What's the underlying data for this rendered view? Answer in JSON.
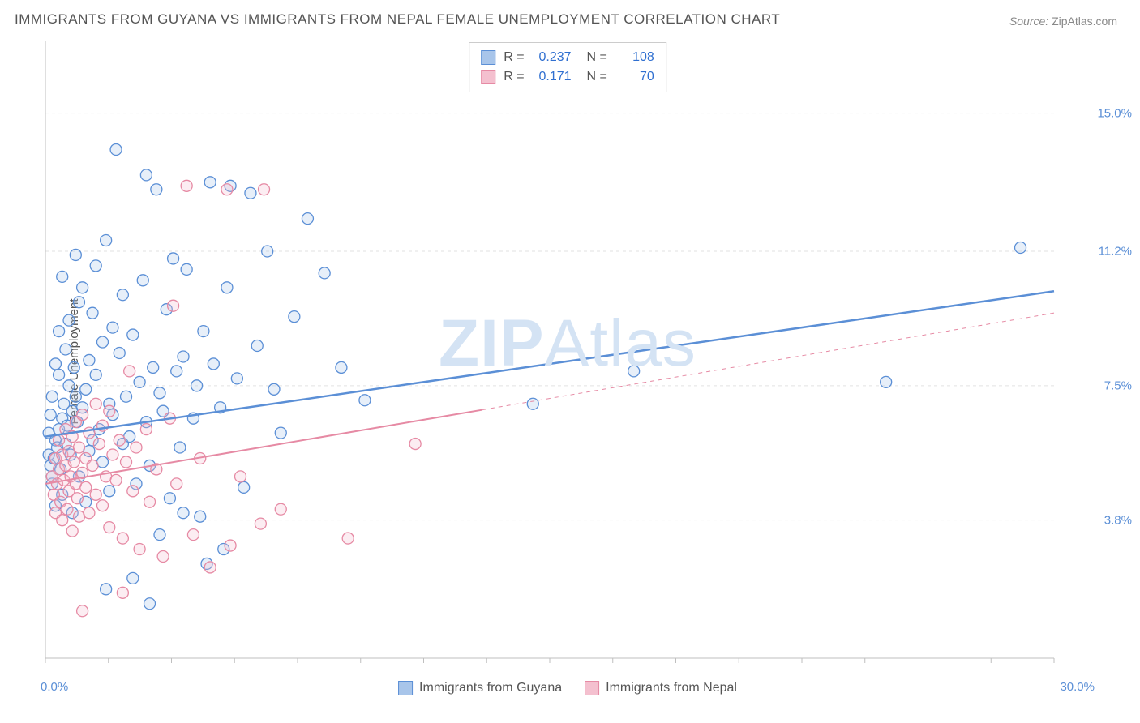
{
  "title": "IMMIGRANTS FROM GUYANA VS IMMIGRANTS FROM NEPAL FEMALE UNEMPLOYMENT CORRELATION CHART",
  "source_label": "Source:",
  "source_value": "ZipAtlas.com",
  "ylabel": "Female Unemployment",
  "watermark_bold": "ZIP",
  "watermark_rest": "Atlas",
  "chart": {
    "type": "scatter",
    "xlim": [
      0,
      30
    ],
    "ylim": [
      0,
      17
    ],
    "x_tick_min": "0.0%",
    "x_tick_max": "30.0%",
    "y_gridlines": [
      3.8,
      7.5,
      11.2,
      15.0
    ],
    "y_gridline_labels": [
      "3.8%",
      "7.5%",
      "11.2%",
      "15.0%"
    ],
    "background_color": "#ffffff",
    "grid_color": "#e2e2e2",
    "axis_color": "#bfbfbf",
    "tick_color": "#bfbfbf",
    "label_color": "#5b8fd6",
    "marker_radius": 7,
    "marker_stroke_width": 1.3,
    "marker_fill_opacity": 0.28,
    "series": [
      {
        "name": "Immigrants from Guyana",
        "color_stroke": "#5b8fd6",
        "color_fill": "#a8c5ea",
        "R": "0.237",
        "N": "108",
        "trend": {
          "x1": 0,
          "y1": 6.1,
          "x2": 30,
          "y2": 10.1,
          "width": 2.5,
          "solid_to_x": 30
        },
        "points": [
          [
            0.1,
            5.6
          ],
          [
            0.1,
            6.2
          ],
          [
            0.15,
            5.3
          ],
          [
            0.15,
            6.7
          ],
          [
            0.2,
            4.8
          ],
          [
            0.2,
            5.0
          ],
          [
            0.2,
            7.2
          ],
          [
            0.25,
            5.5
          ],
          [
            0.3,
            6.0
          ],
          [
            0.3,
            4.2
          ],
          [
            0.3,
            8.1
          ],
          [
            0.35,
            5.8
          ],
          [
            0.4,
            6.3
          ],
          [
            0.4,
            7.8
          ],
          [
            0.4,
            9.0
          ],
          [
            0.45,
            5.2
          ],
          [
            0.5,
            6.6
          ],
          [
            0.5,
            4.5
          ],
          [
            0.5,
            10.5
          ],
          [
            0.55,
            7.0
          ],
          [
            0.6,
            5.9
          ],
          [
            0.6,
            8.5
          ],
          [
            0.65,
            6.4
          ],
          [
            0.7,
            9.3
          ],
          [
            0.7,
            7.5
          ],
          [
            0.75,
            5.6
          ],
          [
            0.8,
            6.8
          ],
          [
            0.8,
            4.0
          ],
          [
            0.85,
            8.0
          ],
          [
            0.9,
            7.2
          ],
          [
            0.9,
            11.1
          ],
          [
            0.95,
            6.5
          ],
          [
            1.0,
            5.0
          ],
          [
            1.0,
            9.8
          ],
          [
            1.1,
            10.2
          ],
          [
            1.1,
            6.9
          ],
          [
            1.2,
            7.4
          ],
          [
            1.2,
            4.3
          ],
          [
            1.3,
            8.2
          ],
          [
            1.3,
            5.7
          ],
          [
            1.4,
            6.0
          ],
          [
            1.4,
            9.5
          ],
          [
            1.5,
            10.8
          ],
          [
            1.5,
            7.8
          ],
          [
            1.6,
            6.3
          ],
          [
            1.7,
            8.7
          ],
          [
            1.7,
            5.4
          ],
          [
            1.8,
            11.5
          ],
          [
            1.9,
            7.0
          ],
          [
            1.9,
            4.6
          ],
          [
            2.0,
            9.1
          ],
          [
            2.0,
            6.7
          ],
          [
            2.1,
            14.0
          ],
          [
            2.2,
            8.4
          ],
          [
            2.3,
            5.9
          ],
          [
            2.3,
            10.0
          ],
          [
            2.4,
            7.2
          ],
          [
            2.5,
            6.1
          ],
          [
            2.6,
            8.9
          ],
          [
            2.7,
            4.8
          ],
          [
            2.8,
            7.6
          ],
          [
            2.9,
            10.4
          ],
          [
            3.0,
            13.3
          ],
          [
            3.0,
            6.5
          ],
          [
            3.1,
            5.3
          ],
          [
            3.2,
            8.0
          ],
          [
            3.3,
            12.9
          ],
          [
            3.4,
            7.3
          ],
          [
            3.5,
            6.8
          ],
          [
            3.6,
            9.6
          ],
          [
            3.7,
            4.4
          ],
          [
            3.8,
            11.0
          ],
          [
            3.9,
            7.9
          ],
          [
            4.0,
            5.8
          ],
          [
            4.1,
            8.3
          ],
          [
            4.2,
            10.7
          ],
          [
            4.4,
            6.6
          ],
          [
            4.5,
            7.5
          ],
          [
            4.6,
            3.9
          ],
          [
            4.7,
            9.0
          ],
          [
            4.9,
            13.1
          ],
          [
            5.0,
            8.1
          ],
          [
            5.2,
            6.9
          ],
          [
            5.4,
            10.2
          ],
          [
            5.5,
            13.0
          ],
          [
            5.7,
            7.7
          ],
          [
            5.9,
            4.7
          ],
          [
            6.1,
            12.8
          ],
          [
            6.3,
            8.6
          ],
          [
            6.6,
            11.2
          ],
          [
            6.8,
            7.4
          ],
          [
            7.0,
            6.2
          ],
          [
            7.4,
            9.4
          ],
          [
            7.8,
            12.1
          ],
          [
            8.3,
            10.6
          ],
          [
            8.8,
            8.0
          ],
          [
            9.5,
            7.1
          ],
          [
            14.5,
            7.0
          ],
          [
            17.5,
            7.9
          ],
          [
            25.0,
            7.6
          ],
          [
            29.0,
            11.3
          ],
          [
            1.8,
            1.9
          ],
          [
            2.6,
            2.2
          ],
          [
            3.1,
            1.5
          ],
          [
            4.8,
            2.6
          ],
          [
            5.3,
            3.0
          ],
          [
            3.4,
            3.4
          ],
          [
            4.1,
            4.0
          ]
        ]
      },
      {
        "name": "Immigrants from Nepal",
        "color_stroke": "#e68aa4",
        "color_fill": "#f4c0cf",
        "R": "0.171",
        "N": "70",
        "trend": {
          "x1": 0,
          "y1": 4.8,
          "x2": 30,
          "y2": 9.5,
          "width": 2,
          "solid_to_x": 13
        },
        "points": [
          [
            0.2,
            5.0
          ],
          [
            0.25,
            4.5
          ],
          [
            0.3,
            5.5
          ],
          [
            0.3,
            4.0
          ],
          [
            0.35,
            4.8
          ],
          [
            0.4,
            5.2
          ],
          [
            0.4,
            6.0
          ],
          [
            0.45,
            4.3
          ],
          [
            0.5,
            5.6
          ],
          [
            0.5,
            3.8
          ],
          [
            0.55,
            4.9
          ],
          [
            0.6,
            5.3
          ],
          [
            0.6,
            6.3
          ],
          [
            0.65,
            4.1
          ],
          [
            0.7,
            5.7
          ],
          [
            0.7,
            4.6
          ],
          [
            0.75,
            5.0
          ],
          [
            0.8,
            6.1
          ],
          [
            0.8,
            3.5
          ],
          [
            0.85,
            5.4
          ],
          [
            0.9,
            4.8
          ],
          [
            0.9,
            6.5
          ],
          [
            0.95,
            4.4
          ],
          [
            1.0,
            5.8
          ],
          [
            1.0,
            3.9
          ],
          [
            1.1,
            5.1
          ],
          [
            1.1,
            6.7
          ],
          [
            1.2,
            4.7
          ],
          [
            1.2,
            5.5
          ],
          [
            1.3,
            4.0
          ],
          [
            1.3,
            6.2
          ],
          [
            1.4,
            5.3
          ],
          [
            1.5,
            4.5
          ],
          [
            1.5,
            7.0
          ],
          [
            1.6,
            5.9
          ],
          [
            1.7,
            4.2
          ],
          [
            1.7,
            6.4
          ],
          [
            1.8,
            5.0
          ],
          [
            1.9,
            3.6
          ],
          [
            1.9,
            6.8
          ],
          [
            2.0,
            5.6
          ],
          [
            2.1,
            4.9
          ],
          [
            2.2,
            6.0
          ],
          [
            2.3,
            3.3
          ],
          [
            2.4,
            5.4
          ],
          [
            2.5,
            7.9
          ],
          [
            2.6,
            4.6
          ],
          [
            2.7,
            5.8
          ],
          [
            2.8,
            3.0
          ],
          [
            3.0,
            6.3
          ],
          [
            3.1,
            4.3
          ],
          [
            3.3,
            5.2
          ],
          [
            3.5,
            2.8
          ],
          [
            3.7,
            6.6
          ],
          [
            3.8,
            9.7
          ],
          [
            3.9,
            4.8
          ],
          [
            4.2,
            13.0
          ],
          [
            4.4,
            3.4
          ],
          [
            4.6,
            5.5
          ],
          [
            4.9,
            2.5
          ],
          [
            5.4,
            12.9
          ],
          [
            5.5,
            3.1
          ],
          [
            5.8,
            5.0
          ],
          [
            6.4,
            3.7
          ],
          [
            6.5,
            12.9
          ],
          [
            7.0,
            4.1
          ],
          [
            9.0,
            3.3
          ],
          [
            11.0,
            5.9
          ],
          [
            1.1,
            1.3
          ],
          [
            2.3,
            1.8
          ]
        ]
      }
    ]
  },
  "legend_bottom": [
    {
      "label": "Immigrants from Guyana",
      "fill": "#a8c5ea",
      "stroke": "#5b8fd6"
    },
    {
      "label": "Immigrants from Nepal",
      "fill": "#f4c0cf",
      "stroke": "#e68aa4"
    }
  ]
}
